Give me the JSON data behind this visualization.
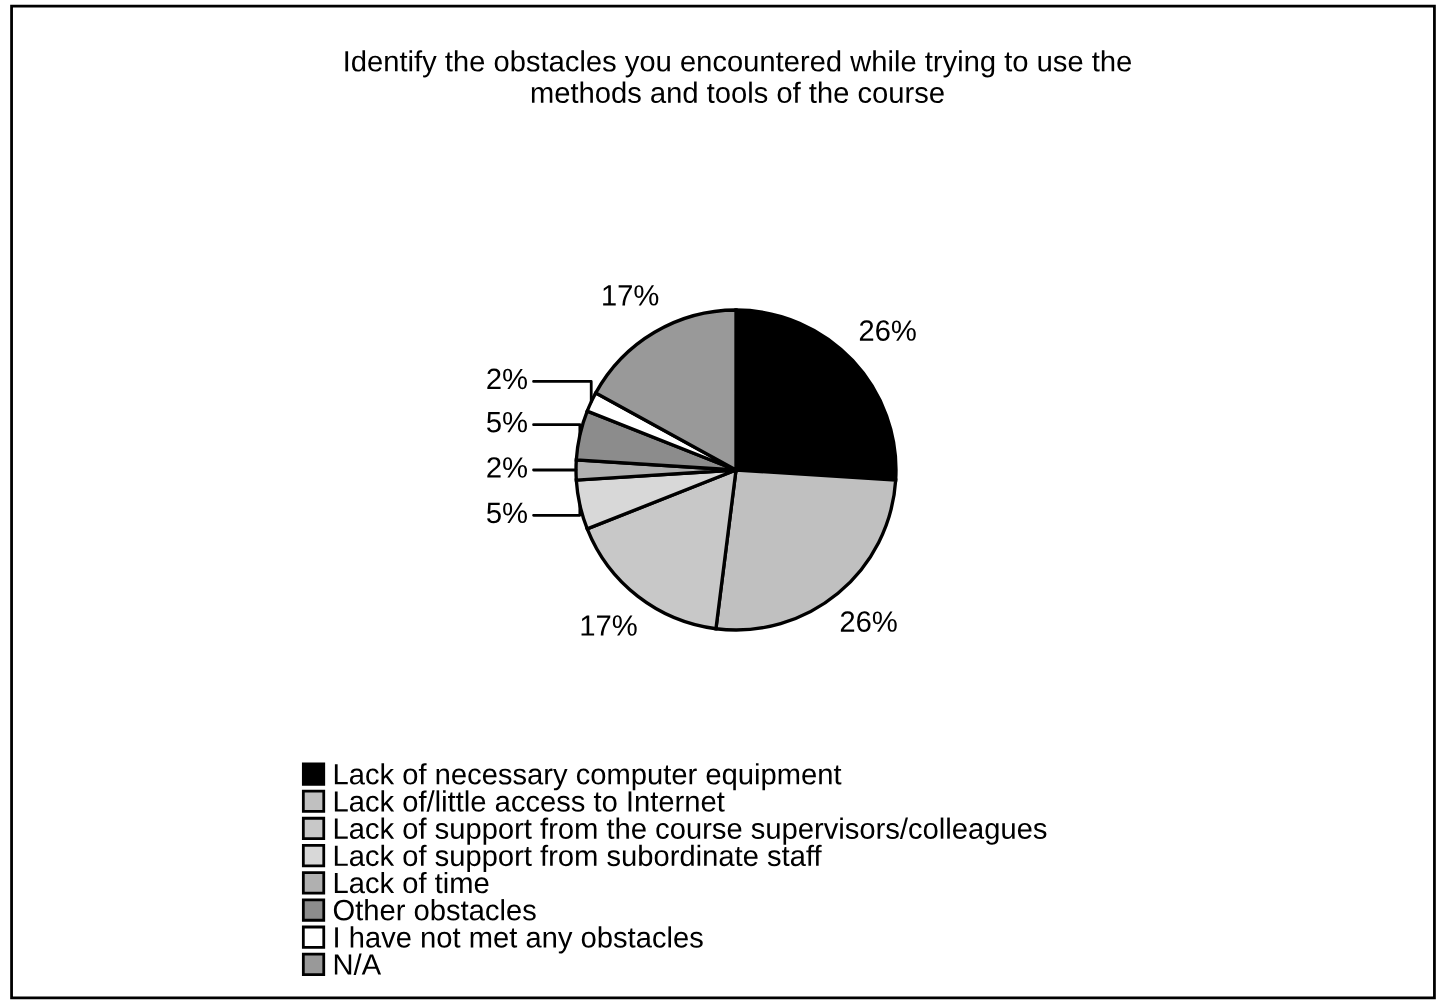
{
  "chart_data": {
    "type": "pie",
    "title": "Identify the obstacles you encountered while trying to use the\nmethods and tools of the course",
    "categories": [
      "Lack of necessary computer equipment",
      "Lack of/little access to Internet",
      "Lack of support from the course supervisors/colleagues",
      "Lack of support from subordinate staff",
      "Lack of time",
      "Other obstacles",
      "I have not met any obstacles",
      "N/A"
    ],
    "values": [
      26,
      26,
      17,
      5,
      2,
      5,
      2,
      17
    ],
    "value_labels": [
      "26%",
      "26%",
      "17%",
      "5%",
      "2%",
      "5%",
      "2%",
      "17%"
    ],
    "colors": [
      "#000000",
      "#c0c0c0",
      "#c8c8c8",
      "#d8d8d8",
      "#b0b0b0",
      "#8c8c8c",
      "#ffffff",
      "#999999"
    ],
    "legend": "bottom left"
  }
}
